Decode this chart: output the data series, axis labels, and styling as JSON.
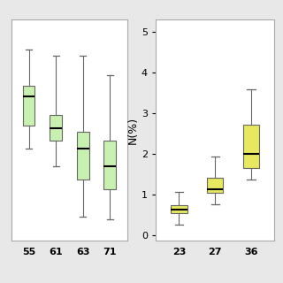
{
  "left_plot": {
    "categories": [
      "55",
      "61",
      "63",
      "71"
    ],
    "box_color": "#c8f0b0",
    "edge_color": "#666666",
    "median_color": "#000000",
    "whisker_color": "#666666",
    "boxes": [
      {
        "q1": 2.65,
        "median": 3.0,
        "q3": 3.12,
        "whislo": 2.38,
        "whishi": 3.55
      },
      {
        "q1": 2.48,
        "median": 2.62,
        "q3": 2.78,
        "whislo": 2.18,
        "whishi": 3.48
      },
      {
        "q1": 2.02,
        "median": 2.38,
        "q3": 2.58,
        "whislo": 1.58,
        "whishi": 3.48
      },
      {
        "q1": 1.9,
        "median": 2.18,
        "q3": 2.48,
        "whislo": 1.55,
        "whishi": 3.25
      }
    ],
    "ylim": [
      1.3,
      3.9
    ],
    "yticks": [],
    "ylabel": ""
  },
  "right_plot": {
    "categories": [
      "23",
      "27",
      "36"
    ],
    "box_color": "#e8e860",
    "edge_color": "#666666",
    "median_color": "#000000",
    "whisker_color": "#666666",
    "boxes": [
      {
        "q1": 0.55,
        "median": 0.65,
        "q3": 0.74,
        "whislo": 0.28,
        "whishi": 1.08
      },
      {
        "q1": 1.05,
        "median": 1.15,
        "q3": 1.43,
        "whislo": 0.78,
        "whishi": 1.95
      },
      {
        "q1": 1.65,
        "median": 2.0,
        "q3": 2.72,
        "whislo": 1.38,
        "whishi": 3.6
      }
    ],
    "ylim": [
      -0.12,
      5.3
    ],
    "yticks": [
      0,
      1,
      2,
      3,
      4,
      5
    ],
    "ylabel": "N(%)"
  },
  "panel_facecolor": "#ffffff",
  "figure_facecolor": "#e8e8e8",
  "panel_edgecolor": "#aaaaaa",
  "tick_label_fontsize": 8,
  "tick_label_fontweight": "bold"
}
